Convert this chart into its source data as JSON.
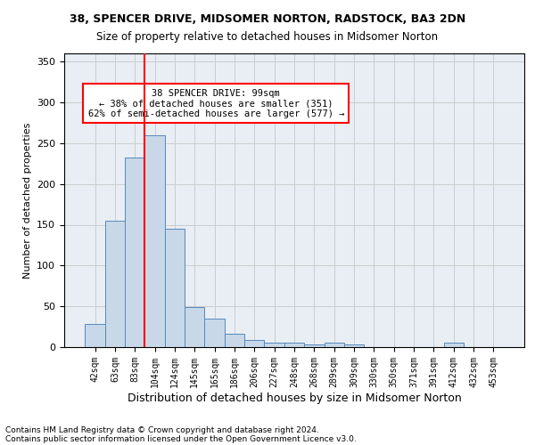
{
  "title1": "38, SPENCER DRIVE, MIDSOMER NORTON, RADSTOCK, BA3 2DN",
  "title2": "Size of property relative to detached houses in Midsomer Norton",
  "xlabel": "Distribution of detached houses by size in Midsomer Norton",
  "ylabel": "Number of detached properties",
  "footer1": "Contains HM Land Registry data © Crown copyright and database right 2024.",
  "footer2": "Contains public sector information licensed under the Open Government Licence v3.0.",
  "bin_labels": [
    "42sqm",
    "63sqm",
    "83sqm",
    "104sqm",
    "124sqm",
    "145sqm",
    "165sqm",
    "186sqm",
    "206sqm",
    "227sqm",
    "248sqm",
    "268sqm",
    "289sqm",
    "309sqm",
    "330sqm",
    "350sqm",
    "371sqm",
    "391sqm",
    "412sqm",
    "432sqm",
    "453sqm"
  ],
  "bar_values": [
    28,
    155,
    232,
    260,
    145,
    49,
    35,
    16,
    9,
    6,
    5,
    3,
    5,
    3,
    0,
    0,
    0,
    0,
    5,
    0,
    0
  ],
  "bar_color": "#c8d8e8",
  "bar_edgecolor": "#5588bb",
  "red_line_index": 3,
  "annotation_text": "38 SPENCER DRIVE: 99sqm\n← 38% of detached houses are smaller (351)\n62% of semi-detached houses are larger (577) →",
  "annotation_box_color": "white",
  "annotation_box_edgecolor": "red",
  "red_line_color": "red",
  "ylim": [
    0,
    360
  ],
  "yticks": [
    0,
    50,
    100,
    150,
    200,
    250,
    300,
    350
  ],
  "grid_color": "#cccccc",
  "bg_color": "#e8eef4"
}
